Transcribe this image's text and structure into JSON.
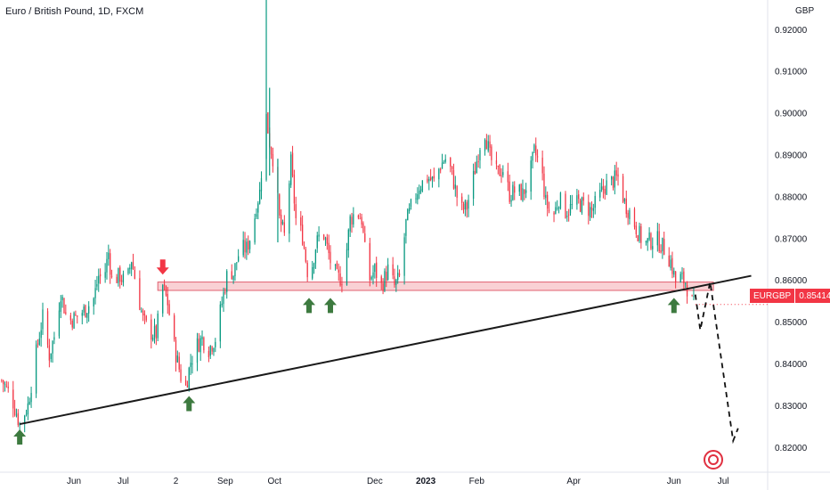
{
  "header": {
    "title": "Euro / British Pound, 1D, FXCM",
    "currency": "GBP"
  },
  "price_tag": {
    "symbol": "EURGBP",
    "value": "0.85414",
    "color": "#f23645"
  },
  "colors": {
    "up": "#089981",
    "down": "#f23645",
    "zone_fill": "#f8c9cc",
    "zone_border": "#e06070",
    "trendline": "#1a1a1a",
    "arrow_up": "#3d7a3f",
    "arrow_down": "#f23645"
  },
  "icons": [
    "tradingview-logo-icon",
    "arrow-up-icon",
    "arrow-down-icon"
  ],
  "chart_data": {
    "type": "candlestick",
    "y_axis": {
      "side": "right",
      "ylim": [
        0.814,
        0.927
      ],
      "ticks": [
        "0.92000",
        "0.91000",
        "0.90000",
        "0.89000",
        "0.88000",
        "0.87000",
        "0.86000",
        "0.85000",
        "0.84000",
        "0.83000",
        "0.82000"
      ],
      "tick_values": [
        0.92,
        0.91,
        0.9,
        0.89,
        0.88,
        0.87,
        0.86,
        0.85,
        0.84,
        0.83,
        0.82
      ]
    },
    "x_axis": {
      "labels": [
        {
          "text": "Jun",
          "date": "2022-06-01"
        },
        {
          "text": "Jul",
          "date": "2022-07-01"
        },
        {
          "text": "2",
          "date": "2022-08-02"
        },
        {
          "text": "Sep",
          "date": "2022-09-01"
        },
        {
          "text": "Oct",
          "date": "2022-10-01"
        },
        {
          "text": "Dec",
          "date": "2022-12-01"
        },
        {
          "text": "2023",
          "date": "2023-01-01",
          "bold": true
        },
        {
          "text": "Feb",
          "date": "2023-02-01"
        },
        {
          "text": "Apr",
          "date": "2023-04-01"
        },
        {
          "text": "Jun",
          "date": "2023-06-01"
        },
        {
          "text": "Jul",
          "date": "2023-07-01"
        }
      ],
      "range": [
        "2022-04-17",
        "2023-07-28"
      ]
    },
    "series_path": [
      [
        "2022-04-18",
        0.836
      ],
      [
        "2022-04-24",
        0.832
      ],
      [
        "2022-04-29",
        0.8255
      ],
      [
        "2022-05-04",
        0.83
      ],
      [
        "2022-05-10",
        0.845
      ],
      [
        "2022-05-13",
        0.851
      ],
      [
        "2022-05-17",
        0.842
      ],
      [
        "2022-05-20",
        0.8465
      ],
      [
        "2022-05-24",
        0.857
      ],
      [
        "2022-05-28",
        0.85
      ],
      [
        "2022-06-02",
        0.851
      ],
      [
        "2022-06-08",
        0.853
      ],
      [
        "2022-06-13",
        0.8555
      ],
      [
        "2022-06-16",
        0.861
      ],
      [
        "2022-06-19",
        0.86
      ],
      [
        "2022-06-22",
        0.8665
      ],
      [
        "2022-06-24",
        0.86
      ],
      [
        "2022-06-29",
        0.861
      ],
      [
        "2022-07-03",
        0.859
      ],
      [
        "2022-07-06",
        0.865
      ],
      [
        "2022-07-09",
        0.8585
      ],
      [
        "2022-07-13",
        0.8505
      ],
      [
        "2022-07-17",
        0.8475
      ],
      [
        "2022-07-21",
        0.847
      ],
      [
        "2022-07-25",
        0.8585
      ],
      [
        "2022-07-28",
        0.8545
      ],
      [
        "2022-08-01",
        0.844
      ],
      [
        "2022-08-05",
        0.837
      ],
      [
        "2022-08-08",
        0.8345
      ],
      [
        "2022-08-11",
        0.8405
      ],
      [
        "2022-08-15",
        0.8445
      ],
      [
        "2022-08-18",
        0.846
      ],
      [
        "2022-08-22",
        0.8435
      ],
      [
        "2022-08-26",
        0.846
      ],
      [
        "2022-08-30",
        0.8545
      ],
      [
        "2022-09-03",
        0.863
      ],
      [
        "2022-09-06",
        0.8615
      ],
      [
        "2022-09-10",
        0.8675
      ],
      [
        "2022-09-14",
        0.8675
      ],
      [
        "2022-09-18",
        0.8725
      ],
      [
        "2022-09-20",
        0.878
      ],
      [
        "2022-09-22",
        0.881
      ],
      [
        "2022-09-24",
        0.891
      ],
      [
        "2022-09-26",
        0.899
      ],
      [
        "2022-09-28",
        0.893
      ],
      [
        "2022-10-01",
        0.8875
      ],
      [
        "2022-10-04",
        0.8745
      ],
      [
        "2022-10-07",
        0.8705
      ],
      [
        "2022-10-11",
        0.888
      ],
      [
        "2022-10-14",
        0.8745
      ],
      [
        "2022-10-18",
        0.8705
      ],
      [
        "2022-10-22",
        0.8595
      ],
      [
        "2022-10-26",
        0.868
      ],
      [
        "2022-10-30",
        0.8725
      ],
      [
        "2022-11-04",
        0.8645
      ],
      [
        "2022-11-08",
        0.8605
      ],
      [
        "2022-11-12",
        0.8605
      ],
      [
        "2022-11-16",
        0.8745
      ],
      [
        "2022-11-20",
        0.8765
      ],
      [
        "2022-11-23",
        0.8745
      ],
      [
        "2022-11-27",
        0.8595
      ],
      [
        "2022-12-01",
        0.8625
      ],
      [
        "2022-12-05",
        0.8585
      ],
      [
        "2022-12-09",
        0.8625
      ],
      [
        "2022-12-13",
        0.8585
      ],
      [
        "2022-12-16",
        0.8605
      ],
      [
        "2022-12-20",
        0.8735
      ],
      [
        "2022-12-24",
        0.8785
      ],
      [
        "2022-12-28",
        0.8825
      ],
      [
        "2023-01-02",
        0.8845
      ],
      [
        "2023-01-06",
        0.8835
      ],
      [
        "2023-01-10",
        0.8875
      ],
      [
        "2023-01-14",
        0.8895
      ],
      [
        "2023-01-18",
        0.8835
      ],
      [
        "2023-01-22",
        0.8765
      ],
      [
        "2023-01-26",
        0.8775
      ],
      [
        "2023-01-30",
        0.8845
      ],
      [
        "2023-02-03",
        0.8925
      ],
      [
        "2023-02-06",
        0.8955
      ],
      [
        "2023-02-09",
        0.8895
      ],
      [
        "2023-02-13",
        0.8855
      ],
      [
        "2023-02-17",
        0.8865
      ],
      [
        "2023-02-21",
        0.8805
      ],
      [
        "2023-02-25",
        0.8815
      ],
      [
        "2023-03-01",
        0.8805
      ],
      [
        "2023-03-05",
        0.8845
      ],
      [
        "2023-03-08",
        0.8905
      ],
      [
        "2023-03-12",
        0.8875
      ],
      [
        "2023-03-15",
        0.8785
      ],
      [
        "2023-03-19",
        0.8745
      ],
      [
        "2023-03-23",
        0.8795
      ],
      [
        "2023-03-27",
        0.8765
      ],
      [
        "2023-03-31",
        0.8775
      ],
      [
        "2023-04-04",
        0.8785
      ],
      [
        "2023-04-08",
        0.8775
      ],
      [
        "2023-04-12",
        0.8765
      ],
      [
        "2023-04-16",
        0.8795
      ],
      [
        "2023-04-20",
        0.8825
      ],
      [
        "2023-04-24",
        0.8835
      ],
      [
        "2023-04-28",
        0.8845
      ],
      [
        "2023-05-02",
        0.8785
      ],
      [
        "2023-05-06",
        0.8755
      ],
      [
        "2023-05-10",
        0.8715
      ],
      [
        "2023-05-14",
        0.8685
      ],
      [
        "2023-05-18",
        0.8695
      ],
      [
        "2023-05-22",
        0.8695
      ],
      [
        "2023-05-26",
        0.8675
      ],
      [
        "2023-05-30",
        0.8645
      ],
      [
        "2023-06-02",
        0.8595
      ],
      [
        "2023-06-05",
        0.8605
      ],
      [
        "2023-06-08",
        0.8595
      ],
      [
        "2023-06-12",
        0.8545
      ],
      [
        "2023-06-14",
        0.8535
      ]
    ],
    "wicks": [
      {
        "date": "2022-09-26",
        "high": 0.927,
        "low": 0.889
      },
      {
        "date": "2022-09-28",
        "high": 0.906,
        "low": 0.885
      },
      {
        "date": "2022-10-03",
        "high": 0.889,
        "low": 0.869
      }
    ],
    "annotations": {
      "resistance_zone": {
        "y_top": 0.8595,
        "y_bottom": 0.8575,
        "from": "2022-07-22",
        "to": "2023-06-25"
      },
      "trendline": {
        "from": [
          "2022-04-29",
          0.8255
        ],
        "to": [
          "2023-07-18",
          0.861
        ]
      },
      "projection": [
        [
          "2023-06-14",
          0.8565
        ],
        [
          "2023-06-17",
          0.848
        ],
        [
          "2023-06-23",
          0.8595
        ],
        [
          "2023-07-07",
          0.8215
        ],
        [
          "2023-07-10",
          0.8245
        ]
      ],
      "arrows_up": [
        {
          "date": "2022-04-29",
          "value": 0.8255
        },
        {
          "date": "2022-08-10",
          "value": 0.8335
        },
        {
          "date": "2022-10-22",
          "value": 0.857
        },
        {
          "date": "2022-11-04",
          "value": 0.857
        },
        {
          "date": "2023-06-01",
          "value": 0.857
        }
      ],
      "arrows_down": [
        {
          "date": "2022-07-25",
          "value": 0.86
        }
      ]
    },
    "last_price": 0.85414
  }
}
